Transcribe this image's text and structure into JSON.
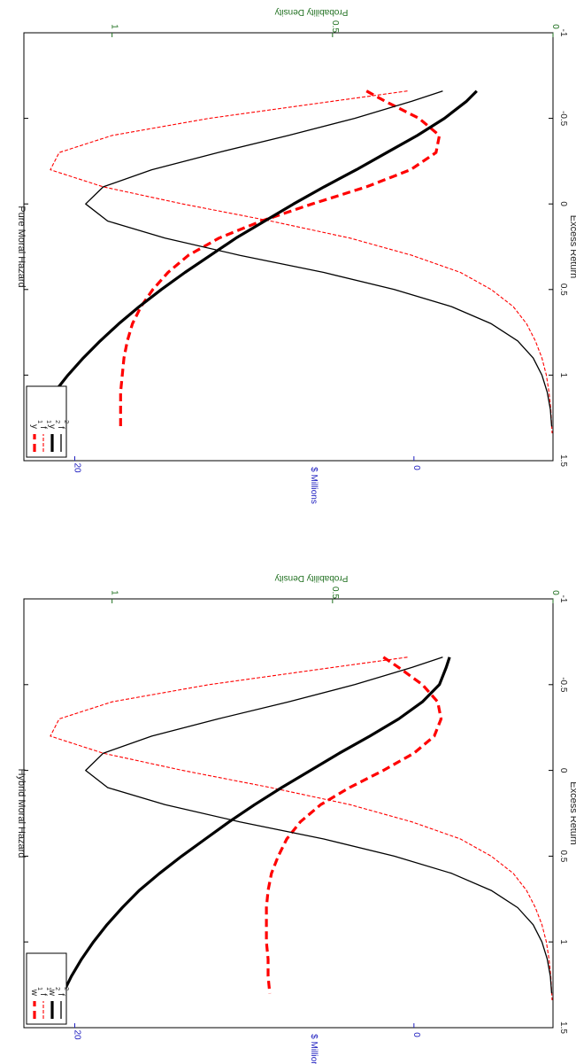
{
  "chart_data": [
    {
      "type": "line",
      "title": "Pure Moral Hazard",
      "xlabel": "Excess Return",
      "ylabel": "$ Millions",
      "ylabel_right": "Probability Density",
      "xlim": [
        -1,
        1.5
      ],
      "ylim": [
        -8.2,
        23
      ],
      "ylim_right": [
        0,
        1.2
      ],
      "xticks": [
        "-1",
        "-0.5",
        "0",
        "0.5",
        "1",
        "1.5"
      ],
      "yticks": [
        "0",
        "20"
      ],
      "yticks_right": [
        "0",
        "0.5",
        "1"
      ],
      "legend_position": "top-left",
      "series": [
        {
          "name": "y",
          "name_sub": "1",
          "axis": "left",
          "color": "#ff0000",
          "style": "dashed-thick",
          "x": [
            -0.66,
            -0.6,
            -0.5,
            -0.4,
            -0.3,
            -0.2,
            -0.1,
            0,
            0.1,
            0.2,
            0.3,
            0.4,
            0.5,
            0.6,
            0.7,
            0.8,
            0.9,
            1.0,
            1.1,
            1.2,
            1.3
          ],
          "values": [
            2.8,
            1.7,
            -0.3,
            -1.5,
            -1.3,
            0.2,
            2.8,
            6.0,
            9.0,
            11.5,
            13.3,
            14.5,
            15.4,
            16.1,
            16.6,
            16.9,
            17.1,
            17.2,
            17.3,
            17.3,
            17.3
          ]
        },
        {
          "name": "f",
          "name_sub": "1",
          "axis": "right",
          "color": "#ff0000",
          "style": "dashed-thin",
          "x": [
            -0.66,
            -0.6,
            -0.5,
            -0.4,
            -0.3,
            -0.2,
            -0.1,
            0,
            0.1,
            0.2,
            0.3,
            0.4,
            0.5,
            0.6,
            0.7,
            0.8,
            0.9,
            1.0,
            1.1,
            1.2,
            1.34
          ],
          "values": [
            0.33,
            0.5,
            0.78,
            1.0,
            1.12,
            1.14,
            1.02,
            0.84,
            0.64,
            0.46,
            0.32,
            0.21,
            0.14,
            0.09,
            0.06,
            0.04,
            0.025,
            0.015,
            0.009,
            0.005,
            0.002
          ]
        },
        {
          "name": "y",
          "name_sub": "2",
          "axis": "left",
          "color": "#000000",
          "style": "solid-thick",
          "x": [
            -0.66,
            -0.6,
            -0.5,
            -0.4,
            -0.3,
            -0.2,
            -0.1,
            0,
            0.1,
            0.2,
            0.3,
            0.4,
            0.5,
            0.6,
            0.7,
            0.8,
            0.9,
            1.0,
            1.1,
            1.2,
            1.3
          ],
          "values": [
            -3.7,
            -3.1,
            -1.8,
            -0.2,
            1.6,
            3.4,
            5.3,
            7.1,
            8.8,
            10.5,
            12.0,
            13.5,
            14.9,
            16.2,
            17.4,
            18.5,
            19.5,
            20.4,
            21.2,
            21.9,
            22.5
          ]
        },
        {
          "name": "f",
          "name_sub": "2",
          "axis": "right",
          "color": "#000000",
          "style": "solid-thin",
          "x": [
            -0.66,
            -0.6,
            -0.5,
            -0.4,
            -0.3,
            -0.2,
            -0.1,
            0,
            0.1,
            0.2,
            0.3,
            0.4,
            0.5,
            0.6,
            0.7,
            0.8,
            0.9,
            1.0,
            1.1,
            1.2,
            1.3
          ],
          "values": [
            0.25,
            0.32,
            0.45,
            0.6,
            0.76,
            0.91,
            1.02,
            1.06,
            1.01,
            0.88,
            0.71,
            0.52,
            0.36,
            0.23,
            0.14,
            0.08,
            0.045,
            0.025,
            0.013,
            0.006,
            0.003
          ]
        }
      ]
    },
    {
      "type": "line",
      "title": "Hybrid Moral Hazard",
      "xlabel": "Excess Return",
      "ylabel": "$ Millions",
      "ylabel_right": "Probability Density",
      "xlim": [
        -1,
        1.5
      ],
      "ylim": [
        -8.2,
        23
      ],
      "ylim_right": [
        0,
        1.2
      ],
      "xticks": [
        "-1",
        "-0.5",
        "0",
        "0.5",
        "1",
        "1.5"
      ],
      "yticks": [
        "0",
        "20"
      ],
      "yticks_right": [
        "0",
        "0.5",
        "1"
      ],
      "legend_position": "top-left",
      "series": [
        {
          "name": "w",
          "name_sub": "1",
          "axis": "left",
          "color": "#ff0000",
          "style": "dashed-thick",
          "x": [
            -0.66,
            -0.6,
            -0.5,
            -0.4,
            -0.3,
            -0.2,
            -0.1,
            0,
            0.1,
            0.2,
            0.3,
            0.4,
            0.5,
            0.6,
            0.7,
            0.8,
            0.9,
            1.0,
            1.1,
            1.2,
            1.3
          ],
          "values": [
            1.8,
            0.9,
            -0.5,
            -1.4,
            -1.6,
            -1.2,
            0.0,
            1.8,
            3.8,
            5.5,
            6.7,
            7.5,
            8.0,
            8.4,
            8.6,
            8.7,
            8.7,
            8.7,
            8.6,
            8.6,
            8.5
          ]
        },
        {
          "name": "f",
          "name_sub": "1",
          "axis": "right",
          "color": "#ff0000",
          "style": "dashed-thin",
          "x": [
            -0.66,
            -0.6,
            -0.5,
            -0.4,
            -0.3,
            -0.2,
            -0.1,
            0,
            0.1,
            0.2,
            0.3,
            0.4,
            0.5,
            0.6,
            0.7,
            0.8,
            0.9,
            1.0,
            1.1,
            1.2,
            1.34
          ],
          "values": [
            0.33,
            0.5,
            0.78,
            1.0,
            1.12,
            1.14,
            1.02,
            0.84,
            0.64,
            0.46,
            0.32,
            0.21,
            0.14,
            0.09,
            0.06,
            0.04,
            0.025,
            0.015,
            0.009,
            0.005,
            0.002
          ]
        },
        {
          "name": "w",
          "name_sub": "2",
          "axis": "left",
          "color": "#000000",
          "style": "solid-thick",
          "x": [
            -0.66,
            -0.6,
            -0.5,
            -0.4,
            -0.3,
            -0.2,
            -0.1,
            0,
            0.1,
            0.2,
            0.3,
            0.4,
            0.5,
            0.6,
            0.7,
            0.8,
            0.9,
            1.0,
            1.1,
            1.2,
            1.3
          ],
          "values": [
            -2.1,
            -1.9,
            -1.5,
            -0.5,
            0.9,
            2.6,
            4.4,
            6.1,
            7.8,
            9.4,
            10.9,
            12.3,
            13.7,
            15.0,
            16.2,
            17.2,
            18.1,
            18.9,
            19.6,
            20.2,
            20.7
          ]
        },
        {
          "name": "f",
          "name_sub": "2",
          "axis": "right",
          "color": "#000000",
          "style": "solid-thin",
          "x": [
            -0.66,
            -0.6,
            -0.5,
            -0.4,
            -0.3,
            -0.2,
            -0.1,
            0,
            0.1,
            0.2,
            0.3,
            0.4,
            0.5,
            0.6,
            0.7,
            0.8,
            0.9,
            1.0,
            1.1,
            1.2,
            1.3
          ],
          "values": [
            0.25,
            0.32,
            0.45,
            0.6,
            0.76,
            0.91,
            1.02,
            1.06,
            1.01,
            0.88,
            0.71,
            0.52,
            0.36,
            0.23,
            0.14,
            0.08,
            0.045,
            0.025,
            0.013,
            0.006,
            0.003
          ]
        }
      ]
    }
  ],
  "colors": {
    "left_axis": "#2020c0",
    "right_axis": "#207020",
    "text": "#222222"
  }
}
